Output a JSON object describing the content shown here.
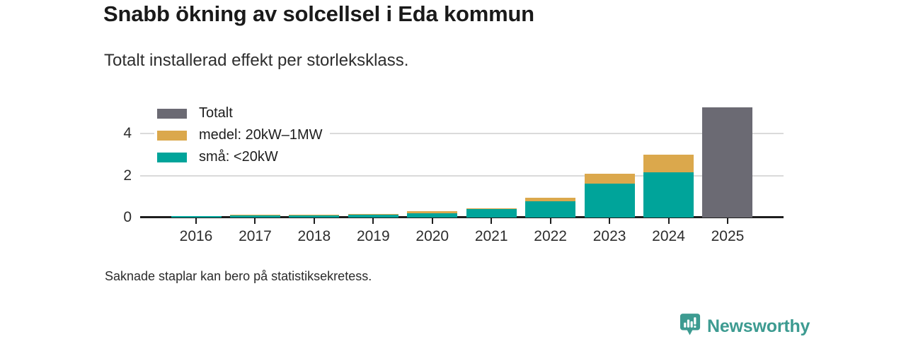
{
  "header": {
    "title": "Snabb ökning av solcellsel i Eda kommun",
    "subtitle": "Totalt installerad effekt per storleksklass."
  },
  "chart_data": {
    "type": "bar",
    "stacked": true,
    "categories": [
      "2016",
      "2017",
      "2018",
      "2019",
      "2020",
      "2021",
      "2022",
      "2023",
      "2024",
      "2025"
    ],
    "series": [
      {
        "name": "Totalt",
        "color": "#6b6a73",
        "values": [
          null,
          null,
          null,
          null,
          null,
          null,
          null,
          null,
          null,
          5.24
        ]
      },
      {
        "name": "medel: 20kW–1MW",
        "color": "#dba84c",
        "values": [
          null,
          0.01,
          0.05,
          0.01,
          0.09,
          0.03,
          0.15,
          0.48,
          0.83,
          null
        ]
      },
      {
        "name": "små: <20kW",
        "color": "#00a49a",
        "values": [
          0.07,
          0.13,
          0.09,
          0.16,
          0.2,
          0.41,
          0.78,
          1.62,
          2.16,
          null
        ]
      }
    ],
    "yticks": [
      0,
      2,
      4
    ],
    "ylim": [
      0,
      5.7
    ],
    "grid": true,
    "legend_position": "top-left"
  },
  "footer": {
    "note": "Saknade staplar kan bero på statistiksekretess."
  },
  "branding": {
    "name": "Newsworthy",
    "color": "#3d9b91",
    "icon": "newsworthy-speech-bubble-bar-chart-icon"
  }
}
